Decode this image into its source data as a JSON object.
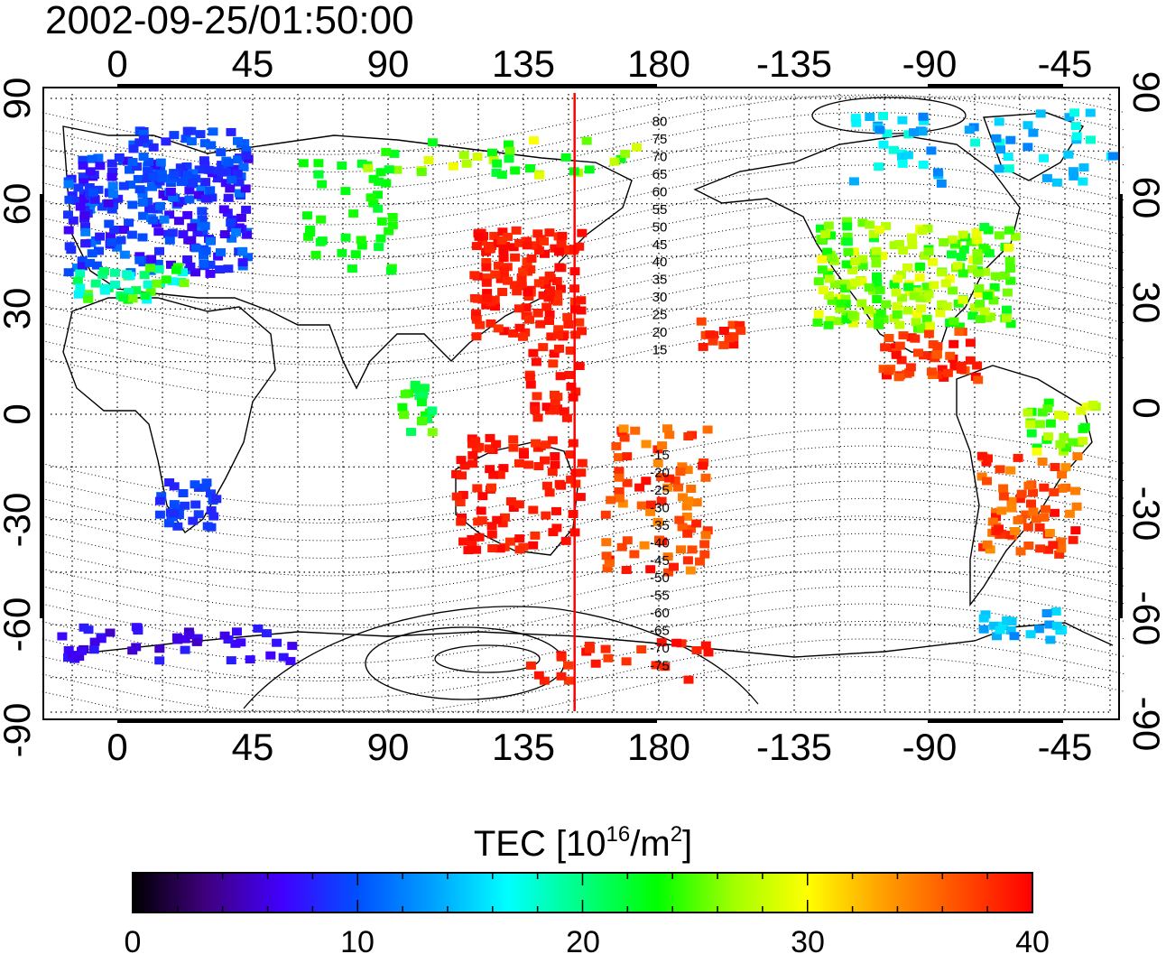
{
  "timestamp": "2002-09-25/01:50:00",
  "map": {
    "lon_ticks": [
      "0",
      "45",
      "90",
      "135",
      "180",
      "-135",
      "-90",
      "-45"
    ],
    "lat_ticks": [
      "90",
      "60",
      "30",
      "0",
      "-30",
      "-60",
      "-90"
    ],
    "lon_range": [
      -25,
      335
    ],
    "lat_range": [
      -90,
      90
    ],
    "meridian_marker_lon": 152,
    "meridian_marker_color": "#ff0000",
    "magnetic_lat_labels": [
      "80",
      "75",
      "70",
      "65",
      "60",
      "55",
      "50",
      "45",
      "40",
      "35",
      "30",
      "25",
      "20",
      "15",
      "-15",
      "-20",
      "-25",
      "-30",
      "-35",
      "-40",
      "-45",
      "-50",
      "-55",
      "-60",
      "-65",
      "-70",
      "-75"
    ]
  },
  "colorbar": {
    "title_main": "TEC  [10",
    "title_sup": "16",
    "title_mid": "/m",
    "title_sup2": "2",
    "title_end": "]",
    "ticks": [
      "0",
      "10",
      "20",
      "30",
      "40"
    ],
    "range": [
      0,
      40
    ],
    "colors": [
      "#000000",
      "#400080",
      "#4000ff",
      "#0050ff",
      "#00a0ff",
      "#00ffff",
      "#00ff80",
      "#00ff00",
      "#a0ff00",
      "#ffff00",
      "#ffa000",
      "#ff5000",
      "#ff0000"
    ]
  }
}
